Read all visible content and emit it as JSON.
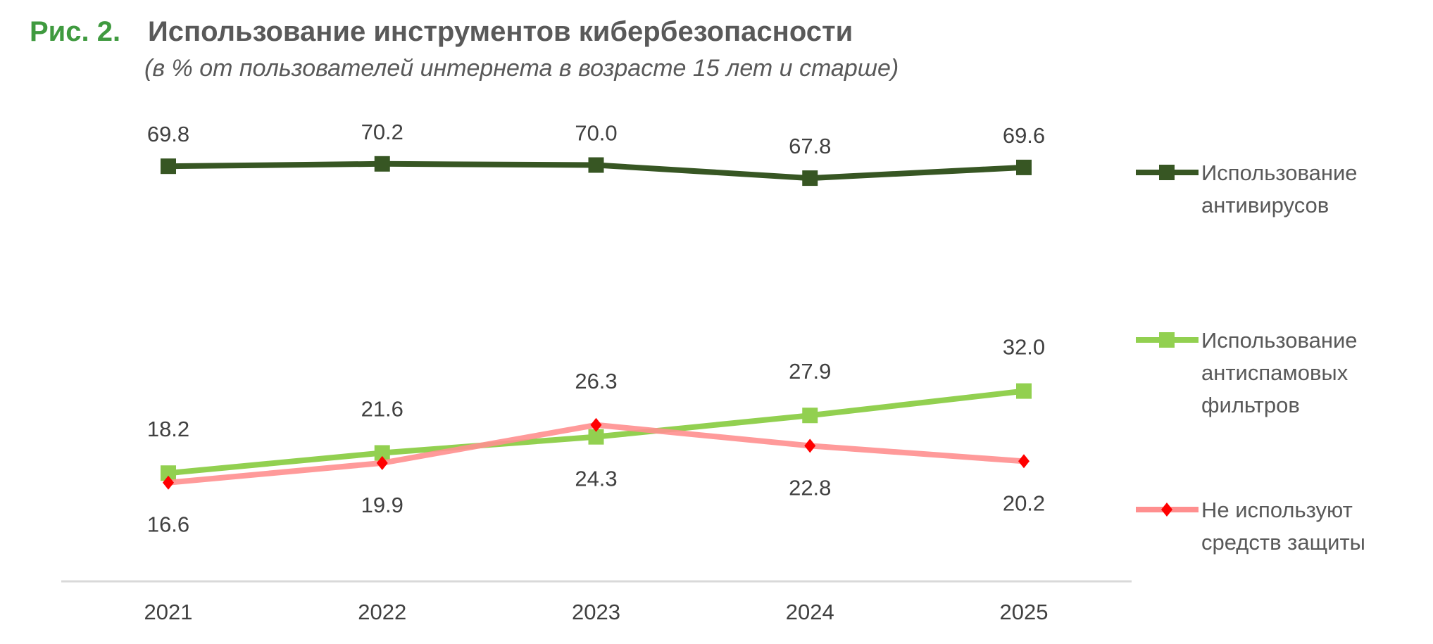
{
  "chart_data": {
    "type": "line",
    "title_prefix": "Рис. 2.",
    "title": "Использование инструментов кибербезопасности",
    "subtitle": "(в % от пользователей интернета в возрасте 15 лет и старше)",
    "categories": [
      "2021",
      "2022",
      "2023",
      "2024",
      "2025"
    ],
    "ylim": [
      0,
      75
    ],
    "grid": false,
    "legend_position": "right",
    "series": [
      {
        "name": "Использование антивирусов",
        "legend_lines": [
          "Использование",
          "антивирусов"
        ],
        "values": [
          69.8,
          70.2,
          70.0,
          67.8,
          69.6
        ],
        "color": "#375623",
        "marker": "square",
        "label_pos": [
          "above",
          "above",
          "above",
          "above",
          "above"
        ]
      },
      {
        "name": "Использование антиспамовых фильтров",
        "legend_lines": [
          "Использование",
          "антиспамовых",
          "фильтров"
        ],
        "values": [
          18.2,
          21.6,
          24.3,
          27.9,
          32.0
        ],
        "color": "#92d050",
        "marker": "square",
        "label_pos": [
          "above",
          "above",
          "below",
          "above",
          "above"
        ]
      },
      {
        "name": "Не используют средств защиты",
        "legend_lines": [
          "Не используют",
          "средств защиты"
        ],
        "values": [
          16.6,
          19.9,
          26.3,
          22.8,
          20.2
        ],
        "color": "#ff8f8f",
        "marker_color": "#ff0000",
        "marker": "diamond",
        "label_pos": [
          "below",
          "below",
          "above",
          "below",
          "below"
        ]
      }
    ]
  }
}
